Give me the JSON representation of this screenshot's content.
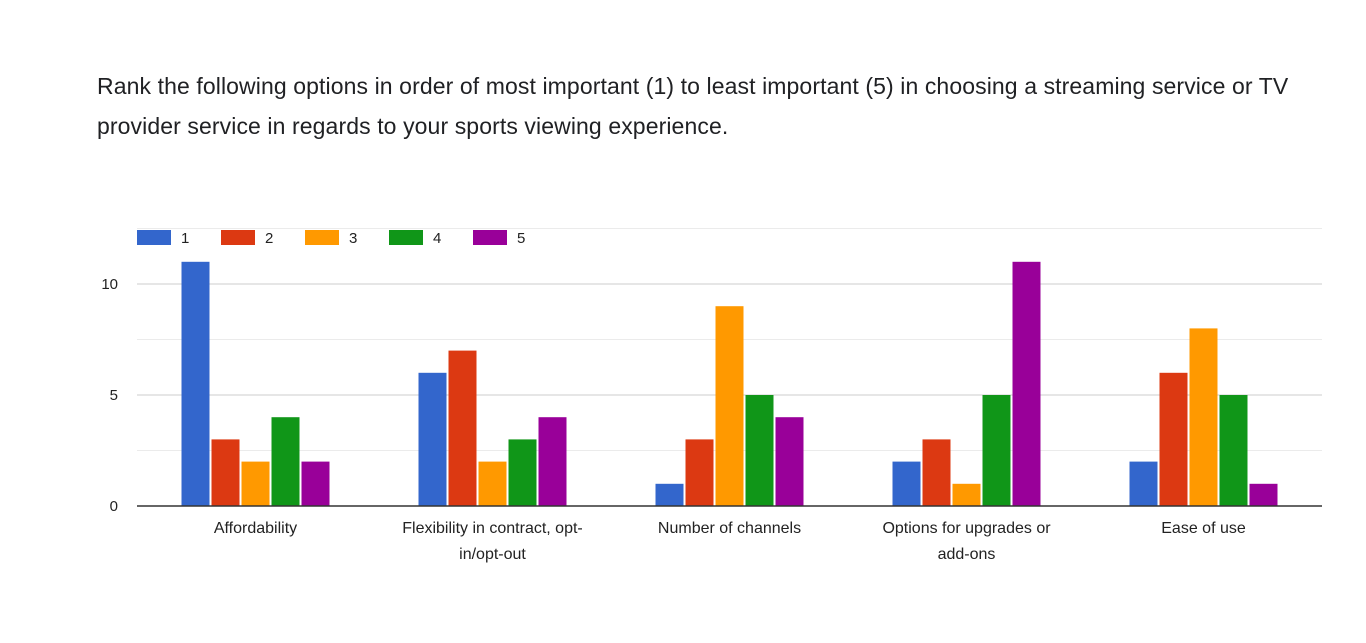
{
  "question": {
    "title": "Rank the following options in order of most important (1) to least important (5) in choosing a streaming service or TV provider service in regards to your sports viewing experience."
  },
  "chart_data": {
    "type": "bar",
    "categories": [
      [
        "Affordability"
      ],
      [
        "Flexibility in contract, opt-",
        "in/opt-out"
      ],
      [
        "Number of channels"
      ],
      [
        "Options for upgrades or",
        "add-ons"
      ],
      [
        "Ease of use"
      ]
    ],
    "series": [
      {
        "name": "1",
        "color": "#3366cc",
        "values": [
          11,
          6,
          1,
          2,
          2
        ]
      },
      {
        "name": "2",
        "color": "#dc3912",
        "values": [
          3,
          7,
          3,
          3,
          6
        ]
      },
      {
        "name": "3",
        "color": "#ff9900",
        "values": [
          2,
          2,
          9,
          1,
          8
        ]
      },
      {
        "name": "4",
        "color": "#109618",
        "values": [
          4,
          3,
          5,
          5,
          5
        ]
      },
      {
        "name": "5",
        "color": "#990099",
        "values": [
          2,
          4,
          4,
          11,
          1
        ]
      }
    ],
    "yticks": [
      "0",
      "5",
      "10"
    ],
    "ylim": [
      0,
      12.5
    ],
    "grid": true,
    "legend": "top-left",
    "xlabel": "",
    "ylabel": ""
  }
}
